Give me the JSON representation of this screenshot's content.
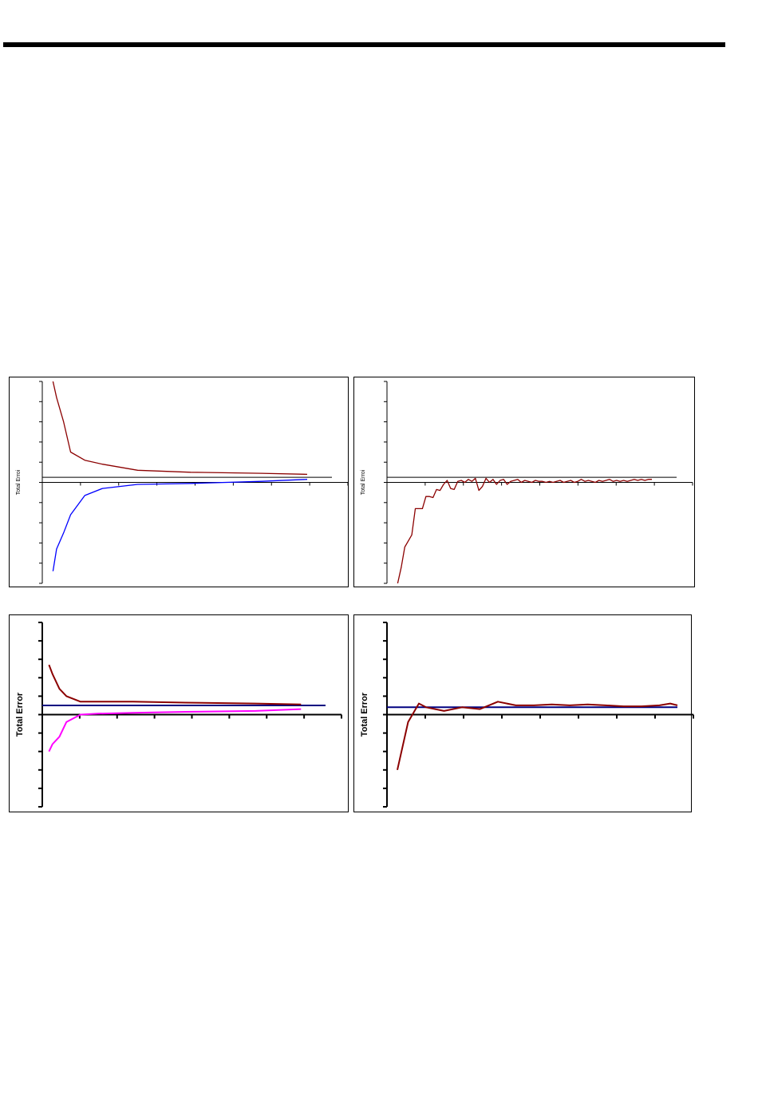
{
  "page": {
    "rule_color": "#000000"
  },
  "chart_data": [
    {
      "type": "line",
      "ylabel": "Total Erroi",
      "x": [
        1,
        2,
        4,
        6,
        10,
        15,
        25,
        40,
        60,
        73
      ],
      "ylim": [
        -5,
        5
      ],
      "xlim": [
        0,
        80
      ],
      "reference_line": 0.25,
      "series": [
        {
          "color": "#8b0000",
          "values": [
            5.0,
            4.2,
            3.0,
            1.5,
            1.1,
            0.9,
            0.6,
            0.5,
            0.45,
            0.4
          ]
        },
        {
          "color": "#0000ff",
          "values": [
            -4.4,
            -3.3,
            -2.5,
            -1.6,
            -0.65,
            -0.3,
            -0.1,
            -0.05,
            0.05,
            0.15
          ]
        }
      ]
    },
    {
      "type": "line",
      "ylabel": "Total Erroi",
      "x": [
        1,
        2,
        3,
        4,
        5,
        6,
        7,
        8,
        9,
        10,
        11,
        12,
        13,
        14,
        15,
        16,
        17,
        18,
        19,
        20,
        21,
        22,
        23,
        24,
        25,
        26,
        27,
        28,
        29,
        30,
        31,
        32,
        33,
        34,
        35,
        36,
        37,
        38,
        39,
        40,
        41,
        42,
        43,
        44,
        45,
        46,
        47,
        48,
        49,
        50,
        51,
        52,
        53,
        54,
        55,
        56,
        57,
        58,
        59,
        60,
        61,
        62,
        63,
        64,
        65,
        66,
        67,
        68,
        69,
        70,
        71,
        72,
        73
      ],
      "ylim": [
        -5,
        5
      ],
      "xlim": [
        0,
        80
      ],
      "reference_line": 0.25,
      "series": [
        {
          "color": "#8b0000",
          "values": [
            -5.0,
            -4.2,
            -3.2,
            -2.9,
            -2.6,
            -1.3,
            -1.3,
            -1.3,
            -0.7,
            -0.7,
            -0.75,
            -0.35,
            -0.4,
            -0.1,
            0.1,
            -0.3,
            -0.35,
            0.05,
            0.1,
            0.0,
            0.15,
            0.05,
            0.2,
            -0.4,
            -0.2,
            0.2,
            0.0,
            0.15,
            -0.1,
            0.1,
            0.15,
            -0.1,
            0.05,
            0.1,
            0.15,
            0.0,
            0.1,
            0.05,
            0.0,
            0.1,
            0.05,
            0.05,
            0.0,
            0.05,
            0.0,
            0.05,
            0.1,
            0.0,
            0.05,
            0.1,
            0.0,
            0.05,
            0.15,
            0.05,
            0.1,
            0.05,
            0.0,
            0.1,
            0.05,
            0.1,
            0.15,
            0.05,
            0.1,
            0.05,
            0.1,
            0.05,
            0.1,
            0.15,
            0.1,
            0.15,
            0.1,
            0.15,
            0.15
          ]
        }
      ]
    },
    {
      "type": "line",
      "ylabel": "Total Error",
      "x": [
        1,
        2,
        4,
        6,
        10,
        15,
        25,
        40,
        60,
        73
      ],
      "ylim": [
        -5,
        5
      ],
      "xlim": [
        0,
        80
      ],
      "reference_line": 0.5,
      "series": [
        {
          "color": "#8b0000",
          "values": [
            2.7,
            2.2,
            1.4,
            1.0,
            0.7,
            0.7,
            0.7,
            0.65,
            0.6,
            0.55
          ]
        },
        {
          "color": "#ff00ff",
          "values": [
            -2.0,
            -1.6,
            -1.2,
            -0.4,
            0.0,
            0.05,
            0.1,
            0.15,
            0.2,
            0.3
          ]
        }
      ]
    },
    {
      "type": "line",
      "ylabel": "Total Error",
      "x": [
        2,
        5,
        8,
        10,
        15,
        20,
        25,
        30,
        35,
        40,
        45,
        50,
        55,
        60,
        65,
        70,
        75,
        78,
        80
      ],
      "ylim": [
        -5,
        5
      ],
      "xlim": [
        0,
        80
      ],
      "reference_line": 0.4,
      "series": [
        {
          "color": "#8b0000",
          "values": [
            -3.0,
            -0.4,
            0.6,
            0.4,
            0.2,
            0.4,
            0.3,
            0.7,
            0.5,
            0.5,
            0.55,
            0.5,
            0.55,
            0.5,
            0.45,
            0.45,
            0.5,
            0.6,
            0.5
          ]
        }
      ]
    }
  ]
}
